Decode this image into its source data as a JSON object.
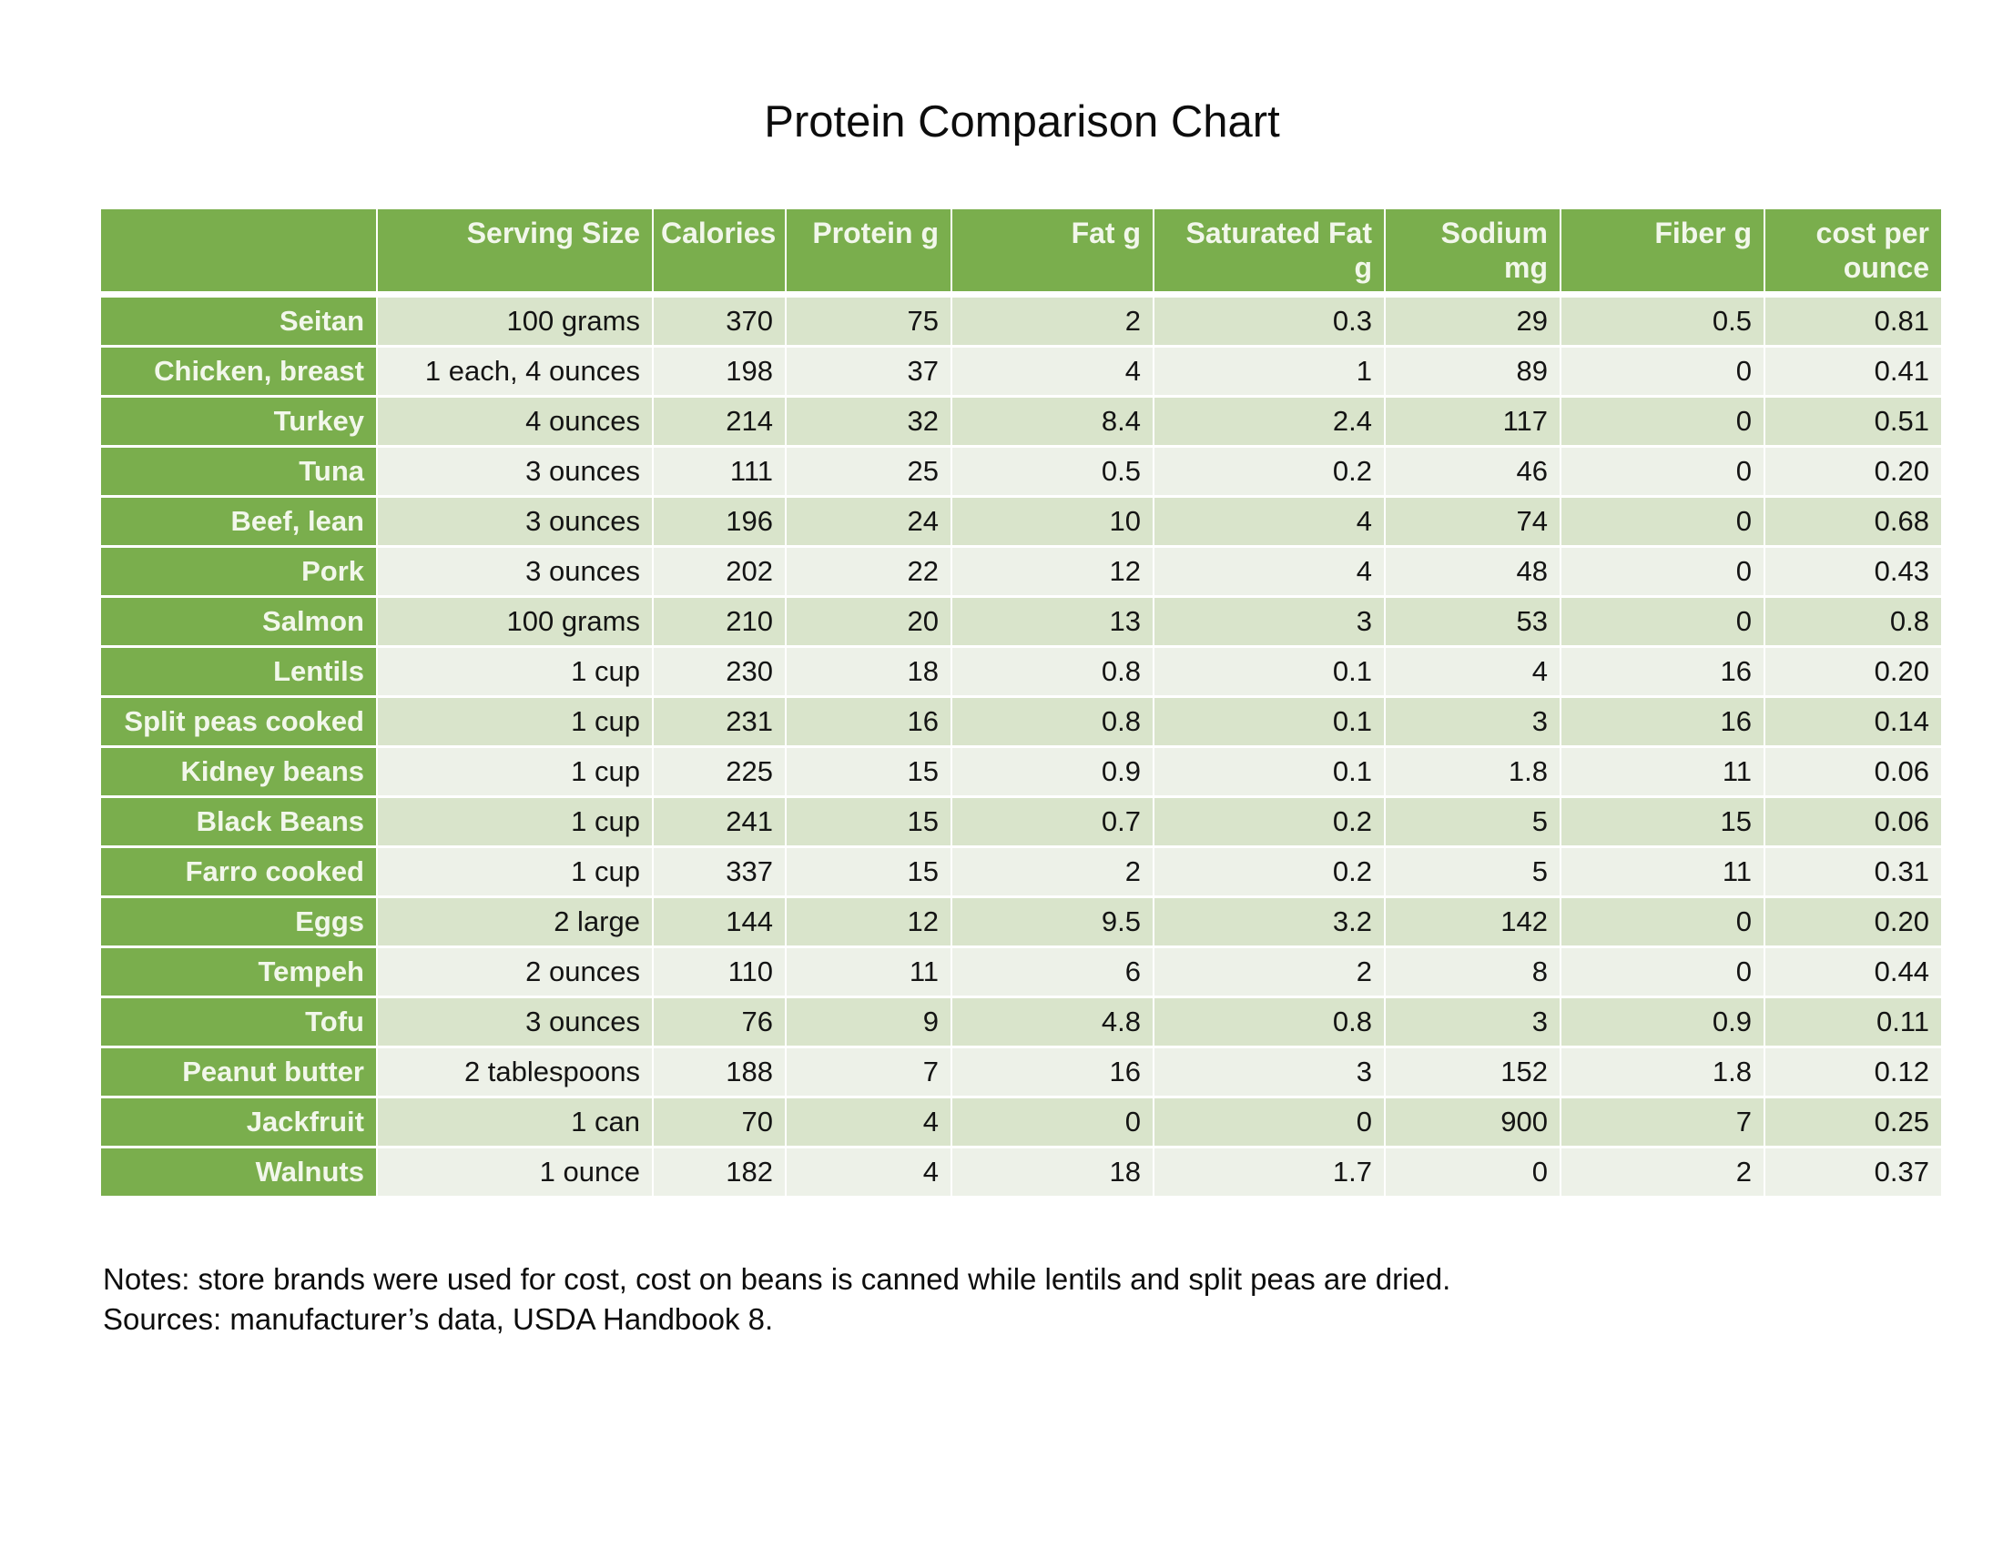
{
  "page": {
    "title": "Protein Comparison Chart",
    "notes_line1": "Notes: store brands were used for cost, cost on beans is canned while lentils and split peas are dried.",
    "notes_line2": "Sources: manufacturer’s data, USDA Handbook 8."
  },
  "colors": {
    "header_green": "#7aae4d",
    "row_stripe_dark": "#d9e4cb",
    "row_stripe_light": "#edf1e8",
    "header_text": "#f2f7eb"
  },
  "chart_data": {
    "type": "table",
    "title": "Protein Comparison Chart",
    "columns": [
      "",
      "Serving Size",
      "Calories",
      "Protein g",
      "Fat g",
      "Saturated Fat g",
      "Sodium mg",
      "Fiber g",
      "cost per ounce"
    ],
    "rows": [
      {
        "label": "Seitan",
        "values": [
          "100 grams",
          "370",
          "75",
          "2",
          "0.3",
          "29",
          "0.5",
          "0.81"
        ]
      },
      {
        "label": "Chicken, breast",
        "values": [
          "1 each, 4 ounces",
          "198",
          "37",
          "4",
          "1",
          "89",
          "0",
          "0.41"
        ]
      },
      {
        "label": "Turkey",
        "values": [
          "4 ounces",
          "214",
          "32",
          "8.4",
          "2.4",
          "117",
          "0",
          "0.51"
        ]
      },
      {
        "label": "Tuna",
        "values": [
          "3 ounces",
          "111",
          "25",
          "0.5",
          "0.2",
          "46",
          "0",
          "0.20"
        ]
      },
      {
        "label": "Beef, lean",
        "values": [
          "3 ounces",
          "196",
          "24",
          "10",
          "4",
          "74",
          "0",
          "0.68"
        ]
      },
      {
        "label": "Pork",
        "values": [
          "3 ounces",
          "202",
          "22",
          "12",
          "4",
          "48",
          "0",
          "0.43"
        ]
      },
      {
        "label": "Salmon",
        "values": [
          "100 grams",
          "210",
          "20",
          "13",
          "3",
          "53",
          "0",
          "0.8"
        ]
      },
      {
        "label": "Lentils",
        "values": [
          "1 cup",
          "230",
          "18",
          "0.8",
          "0.1",
          "4",
          "16",
          "0.20"
        ]
      },
      {
        "label": "Split peas cooked",
        "values": [
          "1 cup",
          "231",
          "16",
          "0.8",
          "0.1",
          "3",
          "16",
          "0.14"
        ]
      },
      {
        "label": "Kidney beans",
        "values": [
          "1 cup",
          "225",
          "15",
          "0.9",
          "0.1",
          "1.8",
          "11",
          "0.06"
        ]
      },
      {
        "label": "Black Beans",
        "values": [
          "1 cup",
          "241",
          "15",
          "0.7",
          "0.2",
          "5",
          "15",
          "0.06"
        ]
      },
      {
        "label": "Farro cooked",
        "values": [
          "1 cup",
          "337",
          "15",
          "2",
          "0.2",
          "5",
          "11",
          "0.31"
        ]
      },
      {
        "label": "Eggs",
        "values": [
          "2 large",
          "144",
          "12",
          "9.5",
          "3.2",
          "142",
          "0",
          "0.20"
        ]
      },
      {
        "label": "Tempeh",
        "values": [
          "2 ounces",
          "110",
          "11",
          "6",
          "2",
          "8",
          "0",
          "0.44"
        ]
      },
      {
        "label": "Tofu",
        "values": [
          "3 ounces",
          "76",
          "9",
          "4.8",
          "0.8",
          "3",
          "0.9",
          "0.11"
        ]
      },
      {
        "label": "Peanut butter",
        "values": [
          "2 tablespoons",
          "188",
          "7",
          "16",
          "3",
          "152",
          "1.8",
          "0.12"
        ]
      },
      {
        "label": "Jackfruit",
        "values": [
          "1 can",
          "70",
          "4",
          "0",
          "0",
          "900",
          "7",
          "0.25"
        ]
      },
      {
        "label": "Walnuts",
        "values": [
          "1 ounce",
          "182",
          "4",
          "18",
          "1.7",
          "0",
          "2",
          "0.37"
        ]
      }
    ],
    "legend": null,
    "grid": "white cell separators",
    "layout_hints": {
      "label_column": "left, green background",
      "value_alignment": "right"
    }
  }
}
